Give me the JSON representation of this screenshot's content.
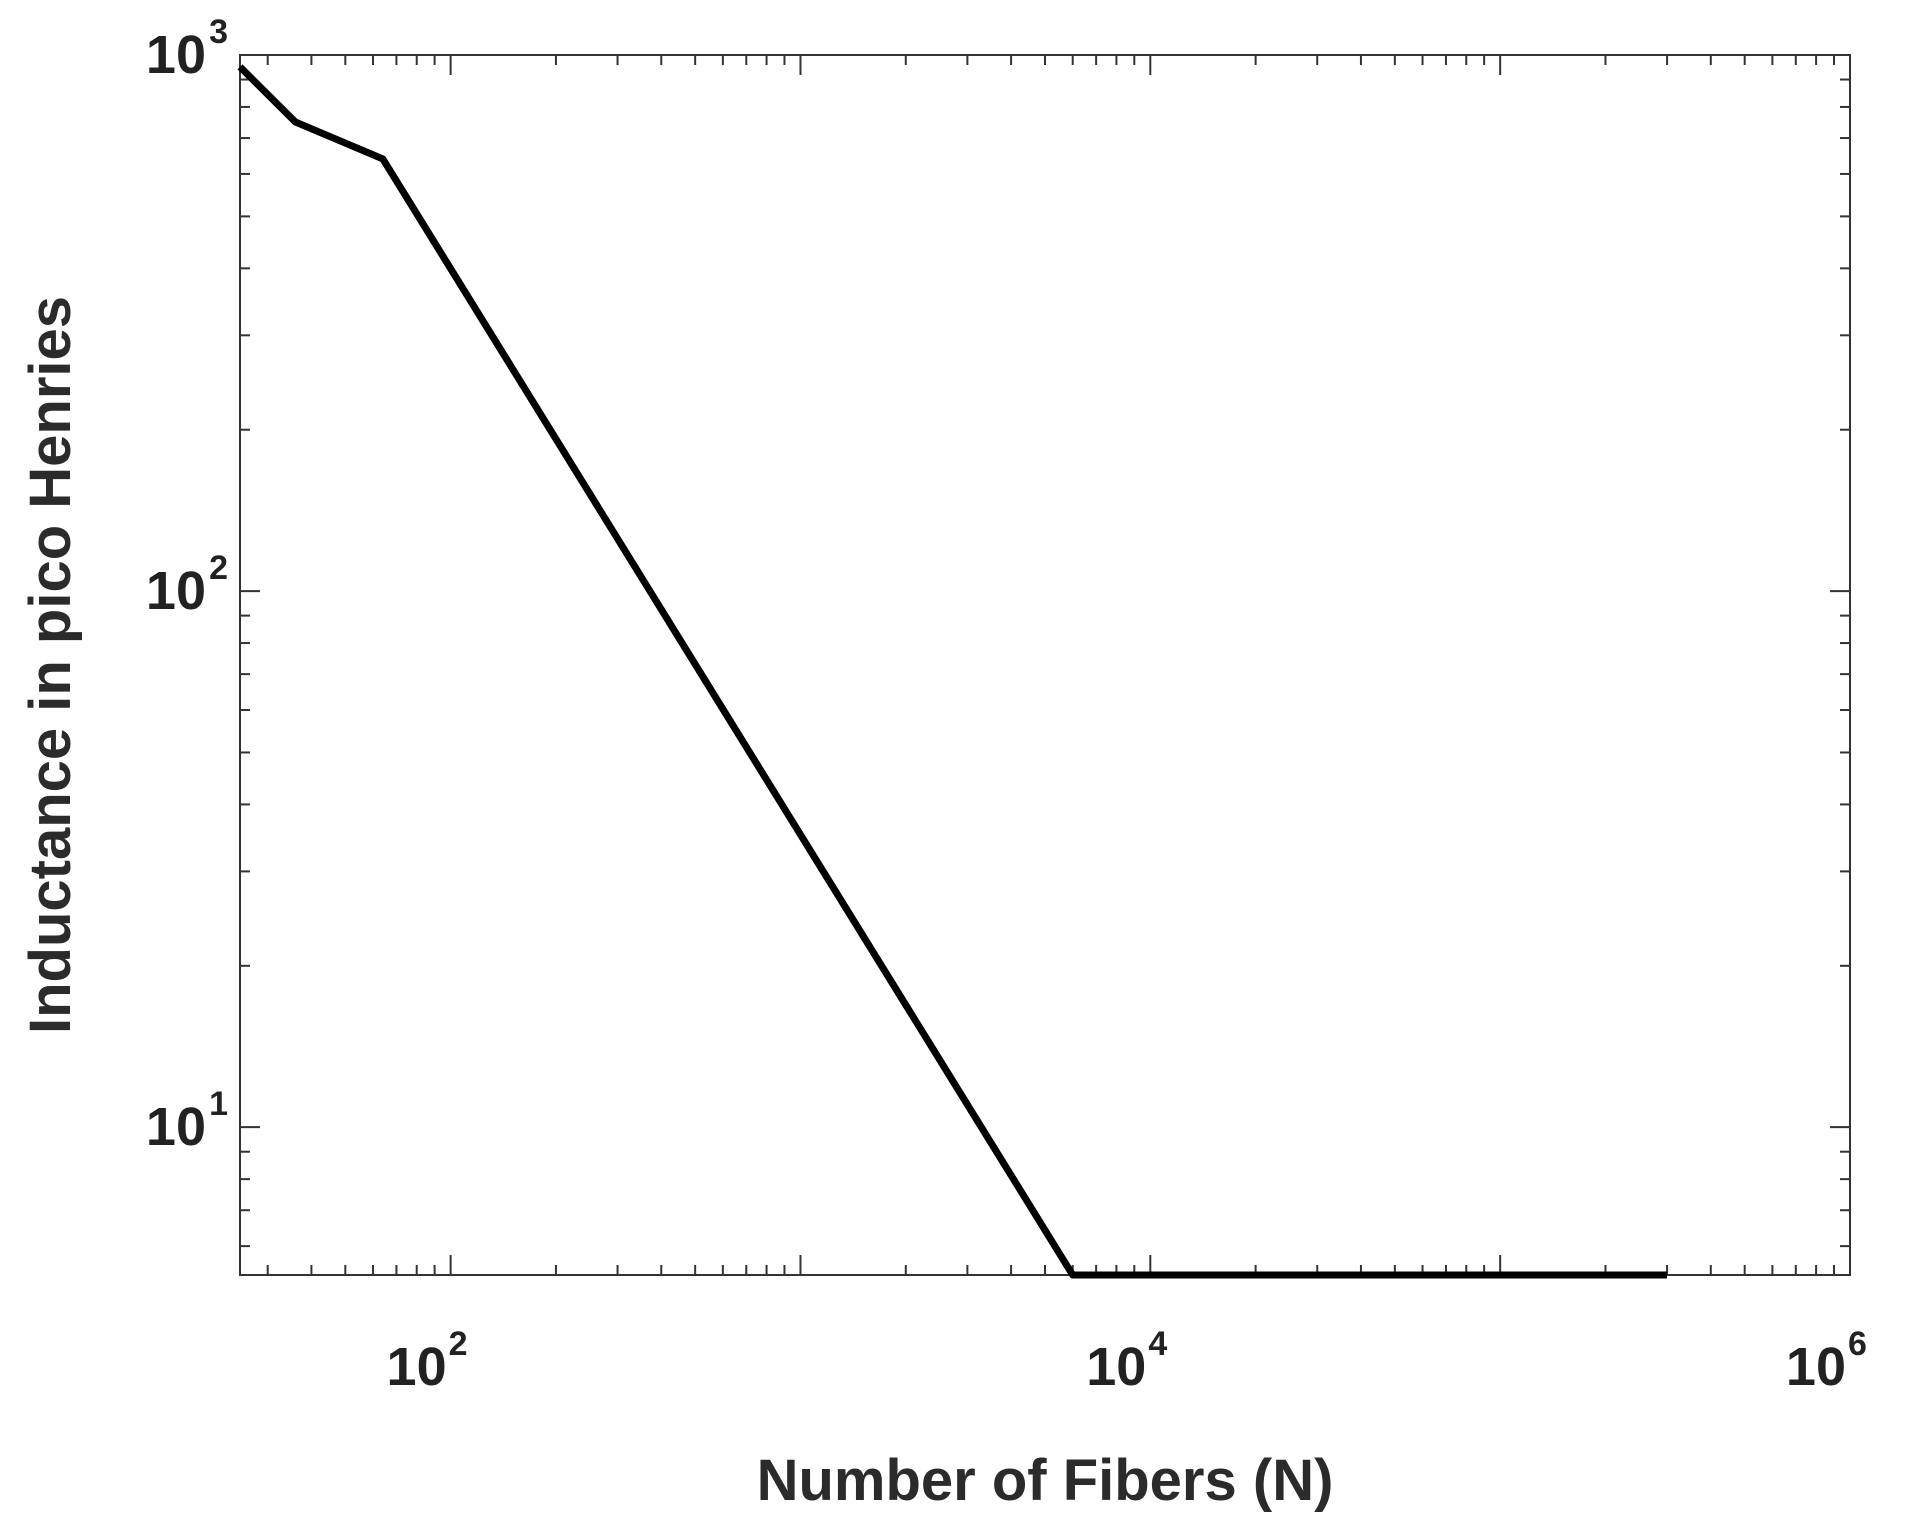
{
  "chart_data": {
    "type": "line",
    "title": "",
    "xlabel": "Number of Fibers (N)",
    "ylabel": "Inductance in pico Henries",
    "xscale": "log",
    "yscale": "log",
    "xlim": [
      25,
      1000000
    ],
    "ylim": [
      5.3,
      1000
    ],
    "grid": false,
    "x_ticks": [
      {
        "base": "10",
        "exp": "2"
      },
      {
        "base": "10",
        "exp": "4"
      },
      {
        "base": "10",
        "exp": "6"
      }
    ],
    "y_ticks": [
      {
        "base": "10",
        "exp": "1"
      },
      {
        "base": "10",
        "exp": "2"
      },
      {
        "base": "10",
        "exp": "3"
      }
    ],
    "series": [
      {
        "color": "#000000",
        "x": [
          25,
          36,
          64,
          6000,
          300000
        ],
        "y": [
          950,
          750,
          640,
          5.3,
          5.3
        ]
      }
    ]
  }
}
